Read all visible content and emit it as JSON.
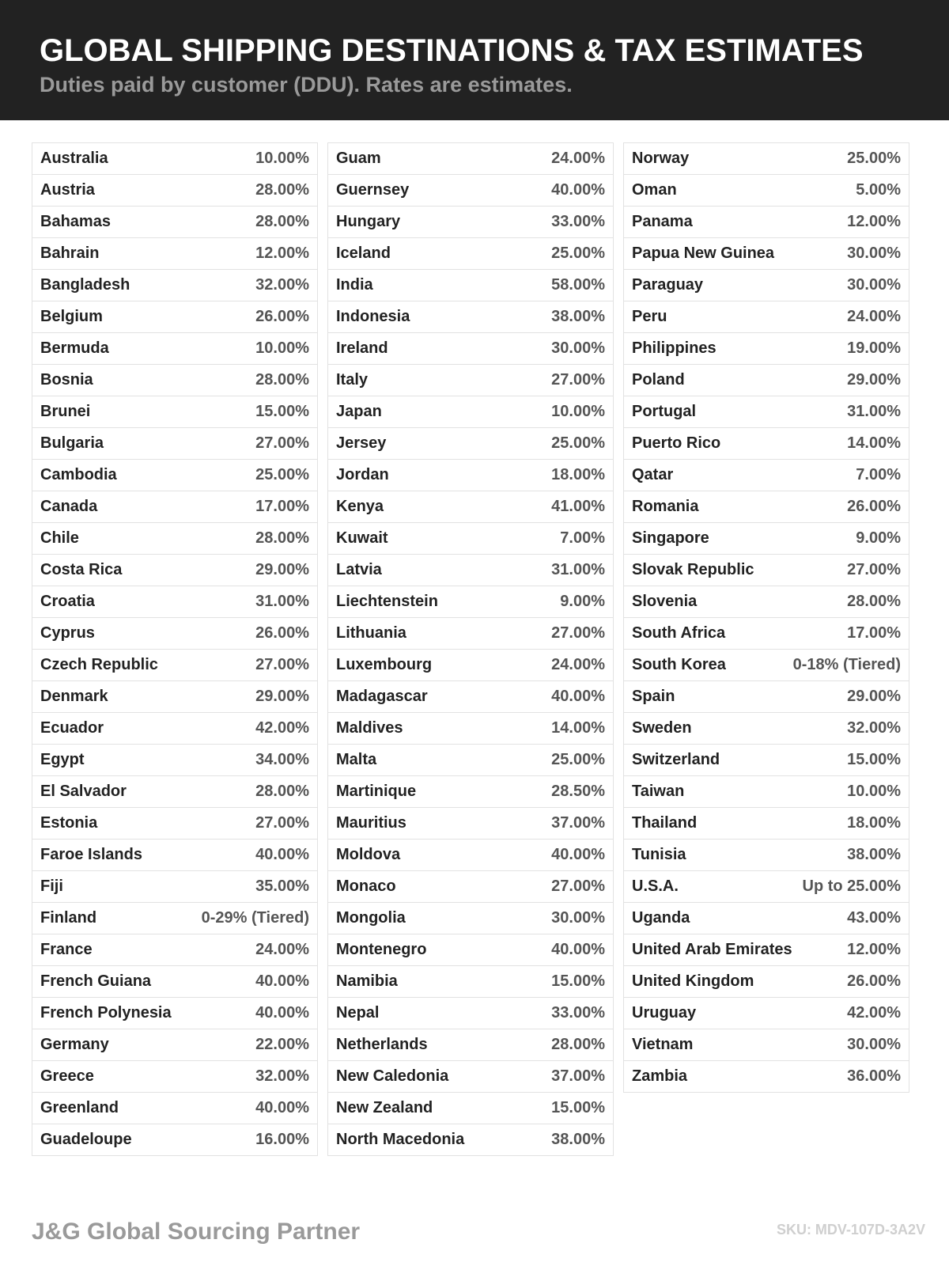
{
  "header": {
    "title": "GLOBAL SHIPPING DESTINATIONS & TAX ESTIMATES",
    "subtitle": "Duties paid by customer (DDU). Rates are estimates."
  },
  "columns": [
    {
      "rows": [
        {
          "country": "Australia",
          "rate": "10.00%"
        },
        {
          "country": "Austria",
          "rate": "28.00%"
        },
        {
          "country": "Bahamas",
          "rate": "28.00%"
        },
        {
          "country": "Bahrain",
          "rate": "12.00%"
        },
        {
          "country": "Bangladesh",
          "rate": "32.00%"
        },
        {
          "country": "Belgium",
          "rate": "26.00%"
        },
        {
          "country": "Bermuda",
          "rate": "10.00%"
        },
        {
          "country": "Bosnia",
          "rate": "28.00%"
        },
        {
          "country": "Brunei",
          "rate": "15.00%"
        },
        {
          "country": "Bulgaria",
          "rate": "27.00%"
        },
        {
          "country": "Cambodia",
          "rate": "25.00%"
        },
        {
          "country": "Canada",
          "rate": "17.00%"
        },
        {
          "country": "Chile",
          "rate": "28.00%"
        },
        {
          "country": "Costa Rica",
          "rate": "29.00%"
        },
        {
          "country": "Croatia",
          "rate": "31.00%"
        },
        {
          "country": "Cyprus",
          "rate": "26.00%"
        },
        {
          "country": "Czech Republic",
          "rate": "27.00%"
        },
        {
          "country": "Denmark",
          "rate": "29.00%"
        },
        {
          "country": "Ecuador",
          "rate": "42.00%"
        },
        {
          "country": "Egypt",
          "rate": "34.00%"
        },
        {
          "country": "El Salvador",
          "rate": "28.00%"
        },
        {
          "country": "Estonia",
          "rate": "27.00%"
        },
        {
          "country": "Faroe Islands",
          "rate": "40.00%"
        },
        {
          "country": "Fiji",
          "rate": "35.00%"
        },
        {
          "country": "Finland",
          "rate": "0-29% (Tiered)"
        },
        {
          "country": "France",
          "rate": "24.00%"
        },
        {
          "country": "French Guiana",
          "rate": "40.00%"
        },
        {
          "country": "French Polynesia",
          "rate": "40.00%"
        },
        {
          "country": "Germany",
          "rate": "22.00%"
        },
        {
          "country": "Greece",
          "rate": "32.00%"
        },
        {
          "country": "Greenland",
          "rate": "40.00%"
        },
        {
          "country": "Guadeloupe",
          "rate": "16.00%"
        }
      ]
    },
    {
      "rows": [
        {
          "country": "Guam",
          "rate": "24.00%"
        },
        {
          "country": "Guernsey",
          "rate": "40.00%"
        },
        {
          "country": "Hungary",
          "rate": "33.00%"
        },
        {
          "country": "Iceland",
          "rate": "25.00%"
        },
        {
          "country": "India",
          "rate": "58.00%"
        },
        {
          "country": "Indonesia",
          "rate": "38.00%"
        },
        {
          "country": "Ireland",
          "rate": "30.00%"
        },
        {
          "country": "Italy",
          "rate": "27.00%"
        },
        {
          "country": "Japan",
          "rate": "10.00%"
        },
        {
          "country": "Jersey",
          "rate": "25.00%"
        },
        {
          "country": "Jordan",
          "rate": "18.00%"
        },
        {
          "country": "Kenya",
          "rate": "41.00%"
        },
        {
          "country": "Kuwait",
          "rate": "7.00%"
        },
        {
          "country": "Latvia",
          "rate": "31.00%"
        },
        {
          "country": "Liechtenstein",
          "rate": "9.00%"
        },
        {
          "country": "Lithuania",
          "rate": "27.00%"
        },
        {
          "country": "Luxembourg",
          "rate": "24.00%"
        },
        {
          "country": "Madagascar",
          "rate": "40.00%"
        },
        {
          "country": "Maldives",
          "rate": "14.00%"
        },
        {
          "country": "Malta",
          "rate": "25.00%"
        },
        {
          "country": "Martinique",
          "rate": "28.50%"
        },
        {
          "country": "Mauritius",
          "rate": "37.00%"
        },
        {
          "country": "Moldova",
          "rate": "40.00%"
        },
        {
          "country": "Monaco",
          "rate": "27.00%"
        },
        {
          "country": "Mongolia",
          "rate": "30.00%"
        },
        {
          "country": "Montenegro",
          "rate": "40.00%"
        },
        {
          "country": "Namibia",
          "rate": "15.00%"
        },
        {
          "country": "Nepal",
          "rate": "33.00%"
        },
        {
          "country": "Netherlands",
          "rate": "28.00%"
        },
        {
          "country": "New Caledonia",
          "rate": "37.00%"
        },
        {
          "country": "New Zealand",
          "rate": "15.00%"
        },
        {
          "country": "North Macedonia",
          "rate": "38.00%"
        }
      ]
    },
    {
      "rows": [
        {
          "country": "Norway",
          "rate": "25.00%"
        },
        {
          "country": "Oman",
          "rate": "5.00%"
        },
        {
          "country": "Panama",
          "rate": "12.00%"
        },
        {
          "country": "Papua New Guinea",
          "rate": "30.00%"
        },
        {
          "country": "Paraguay",
          "rate": "30.00%"
        },
        {
          "country": "Peru",
          "rate": "24.00%"
        },
        {
          "country": "Philippines",
          "rate": "19.00%"
        },
        {
          "country": "Poland",
          "rate": "29.00%"
        },
        {
          "country": "Portugal",
          "rate": "31.00%"
        },
        {
          "country": "Puerto Rico",
          "rate": "14.00%"
        },
        {
          "country": "Qatar",
          "rate": "7.00%"
        },
        {
          "country": "Romania",
          "rate": "26.00%"
        },
        {
          "country": "Singapore",
          "rate": "9.00%"
        },
        {
          "country": "Slovak Republic",
          "rate": "27.00%"
        },
        {
          "country": "Slovenia",
          "rate": "28.00%"
        },
        {
          "country": "South Africa",
          "rate": "17.00%"
        },
        {
          "country": "South Korea",
          "rate": "0-18% (Tiered)"
        },
        {
          "country": "Spain",
          "rate": "29.00%"
        },
        {
          "country": "Sweden",
          "rate": "32.00%"
        },
        {
          "country": "Switzerland",
          "rate": "15.00%"
        },
        {
          "country": "Taiwan",
          "rate": "10.00%"
        },
        {
          "country": "Thailand",
          "rate": "18.00%"
        },
        {
          "country": "Tunisia",
          "rate": "38.00%"
        },
        {
          "country": "U.S.A.",
          "rate": "Up to 25.00%"
        },
        {
          "country": "Uganda",
          "rate": "43.00%"
        },
        {
          "country": "United Arab Emirates",
          "rate": "12.00%"
        },
        {
          "country": "United Kingdom",
          "rate": "26.00%"
        },
        {
          "country": "Uruguay",
          "rate": "42.00%"
        },
        {
          "country": "Vietnam",
          "rate": "30.00%"
        },
        {
          "country": "Zambia",
          "rate": "36.00%"
        }
      ]
    }
  ],
  "footer": {
    "brand": "J&G Global Sourcing Partner",
    "sku": "SKU: MDV-107D-3A2V"
  }
}
